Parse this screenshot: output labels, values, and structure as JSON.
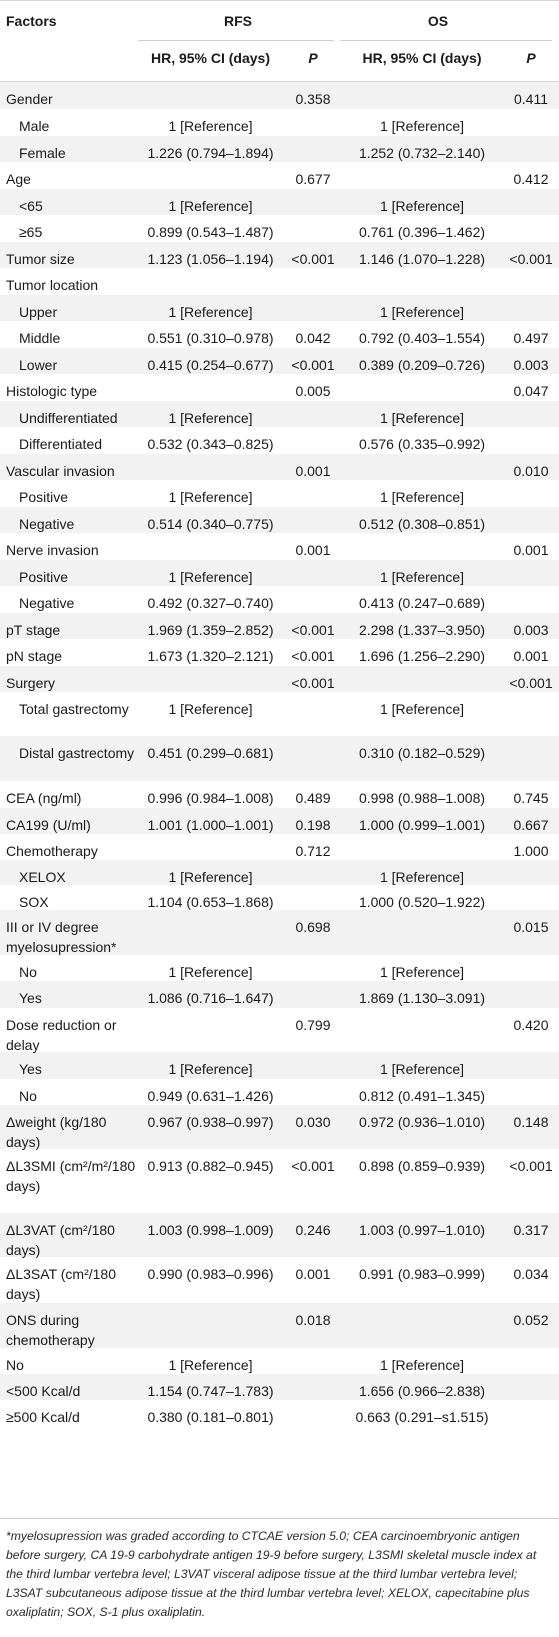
{
  "header": {
    "factors": "Factors",
    "rfs": "RFS",
    "os": "OS",
    "hr_ci": "HR, 95% CI (days)",
    "p": "P"
  },
  "rows": [
    {
      "label": "Gender",
      "indent": false,
      "rfs_hr": "",
      "rfs_p": "0.358",
      "os_hr": "",
      "os_p": "0.411",
      "h": 27
    },
    {
      "label": "Male",
      "indent": true,
      "rfs_hr": "1 [Reference]",
      "rfs_p": "",
      "os_hr": "1 [Reference]",
      "os_p": "",
      "h": 27
    },
    {
      "label": "Female",
      "indent": true,
      "rfs_hr": "1.226 (0.794–1.894)",
      "rfs_p": "",
      "os_hr": "1.252 (0.732–2.140)",
      "os_p": "",
      "h": 26
    },
    {
      "label": "Age",
      "indent": false,
      "rfs_hr": "",
      "rfs_p": "0.677",
      "os_hr": "",
      "os_p": "0.412",
      "h": 27
    },
    {
      "label": "<65",
      "indent": true,
      "rfs_hr": "1 [Reference]",
      "rfs_p": "",
      "os_hr": "1 [Reference]",
      "os_p": "",
      "h": 26
    },
    {
      "label": "≥65",
      "indent": true,
      "rfs_hr": "0.899 (0.543–1.487)",
      "rfs_p": "",
      "os_hr": "0.761 (0.396–1.462)",
      "os_p": "",
      "h": 27
    },
    {
      "label": "Tumor size",
      "indent": false,
      "rfs_hr": "1.123 (1.056–1.194)",
      "rfs_p": "<0.001",
      "os_hr": "1.146 (1.070–1.228)",
      "os_p": "<0.001",
      "h": 26
    },
    {
      "label": "Tumor location",
      "indent": false,
      "rfs_hr": "",
      "rfs_p": "",
      "os_hr": "",
      "os_p": "",
      "h": 27
    },
    {
      "label": "Upper",
      "indent": true,
      "rfs_hr": "1 [Reference]",
      "rfs_p": "",
      "os_hr": "1 [Reference]",
      "os_p": "",
      "h": 26
    },
    {
      "label": "Middle",
      "indent": true,
      "rfs_hr": "0.551 (0.310–0.978)",
      "rfs_p": "0.042",
      "os_hr": "0.792 (0.403–1.554)",
      "os_p": "0.497",
      "h": 27
    },
    {
      "label": "Lower",
      "indent": true,
      "rfs_hr": "0.415 (0.254–0.677)",
      "rfs_p": "<0.001",
      "os_hr": "0.389 (0.209–0.726)",
      "os_p": "0.003",
      "h": 26
    },
    {
      "label": "Histologic type",
      "indent": false,
      "rfs_hr": "",
      "rfs_p": "0.005",
      "os_hr": "",
      "os_p": "0.047",
      "h": 27
    },
    {
      "label": "Undifferentiated",
      "indent": true,
      "rfs_hr": "1 [Reference]",
      "rfs_p": "",
      "os_hr": "1 [Reference]",
      "os_p": "",
      "h": 26
    },
    {
      "label": "Differentiated",
      "indent": true,
      "rfs_hr": "0.532 (0.343–0.825)",
      "rfs_p": "",
      "os_hr": "0.576 (0.335–0.992)",
      "os_p": "",
      "h": 27
    },
    {
      "label": "Vascular invasion",
      "indent": false,
      "rfs_hr": "",
      "rfs_p": "0.001",
      "os_hr": "",
      "os_p": "0.010",
      "h": 26
    },
    {
      "label": "Positive",
      "indent": true,
      "rfs_hr": "1 [Reference]",
      "rfs_p": "",
      "os_hr": "1 [Reference]",
      "os_p": "",
      "h": 27
    },
    {
      "label": "Negative",
      "indent": true,
      "rfs_hr": "0.514 (0.340–0.775)",
      "rfs_p": "",
      "os_hr": "0.512 (0.308–0.851)",
      "os_p": "",
      "h": 26
    },
    {
      "label": "Nerve invasion",
      "indent": false,
      "rfs_hr": "",
      "rfs_p": "0.001",
      "os_hr": "",
      "os_p": "0.001",
      "h": 27
    },
    {
      "label": "Positive",
      "indent": true,
      "rfs_hr": "1 [Reference]",
      "rfs_p": "",
      "os_hr": "1 [Reference]",
      "os_p": "",
      "h": 26
    },
    {
      "label": "Negative",
      "indent": true,
      "rfs_hr": "0.492 (0.327–0.740)",
      "rfs_p": "",
      "os_hr": "0.413 (0.247–0.689)",
      "os_p": "",
      "h": 27
    },
    {
      "label": "pT stage",
      "indent": false,
      "rfs_hr": "1.969 (1.359–2.852)",
      "rfs_p": "<0.001",
      "os_hr": "2.298 (1.337–3.950)",
      "os_p": "0.003",
      "h": 26
    },
    {
      "label": "pN stage",
      "indent": false,
      "rfs_hr": "1.673 (1.320–2.121)",
      "rfs_p": "<0.001",
      "os_hr": "1.696 (1.256–2.290)",
      "os_p": "0.001",
      "h": 27
    },
    {
      "label": "Surgery",
      "indent": false,
      "rfs_hr": "",
      "rfs_p": "<0.001",
      "os_hr": "",
      "os_p": "<0.001",
      "h": 26
    },
    {
      "label": "Total gastrectomy",
      "indent": true,
      "rfs_hr": "1 [Reference]",
      "rfs_p": "",
      "os_hr": "1 [Reference]",
      "os_p": "",
      "h": 44
    },
    {
      "label": "Distal gastrectomy",
      "indent": true,
      "rfs_hr": "0.451 (0.299–0.681)",
      "rfs_p": "",
      "os_hr": "0.310 (0.182–0.529)",
      "os_p": "",
      "h": 45
    },
    {
      "label": "CEA (ng/ml)",
      "indent": false,
      "rfs_hr": "0.996 (0.984–1.008)",
      "rfs_p": "0.489",
      "os_hr": "0.998 (0.988–1.008)",
      "os_p": "0.745",
      "h": 27
    },
    {
      "label": "CA199 (U/ml)",
      "indent": false,
      "rfs_hr": "1.001 (1.000–1.001)",
      "rfs_p": "0.198",
      "os_hr": "1.000 (0.999–1.001)",
      "os_p": "0.667",
      "h": 26
    },
    {
      "label": "Chemotherapy",
      "indent": false,
      "rfs_hr": "",
      "rfs_p": "0.712",
      "os_hr": "",
      "os_p": "1.000",
      "h": 26
    },
    {
      "label": "XELOX",
      "indent": true,
      "rfs_hr": "1 [Reference]",
      "rfs_p": "",
      "os_hr": "1 [Reference]",
      "os_p": "",
      "h": 25
    },
    {
      "label": "SOX",
      "indent": true,
      "rfs_hr": "1.104 (0.653–1.868)",
      "rfs_p": "",
      "os_hr": "1.000 (0.520–1.922)",
      "os_p": "",
      "h": 25
    },
    {
      "label": "III or IV degree myelosupression*",
      "indent": false,
      "rfs_hr": "",
      "rfs_p": "0.698",
      "os_hr": "",
      "os_p": "0.015",
      "h": 45
    },
    {
      "label": "No",
      "indent": true,
      "rfs_hr": "1 [Reference]",
      "rfs_p": "",
      "os_hr": "1 [Reference]",
      "os_p": "",
      "h": 26
    },
    {
      "label": "Yes",
      "indent": true,
      "rfs_hr": "1.086 (0.716–1.647)",
      "rfs_p": "",
      "os_hr": "1.869 (1.130–3.091)",
      "os_p": "",
      "h": 27
    },
    {
      "label": "Dose reduction or delay",
      "indent": false,
      "rfs_hr": "",
      "rfs_p": "0.799",
      "os_hr": "",
      "os_p": "0.420",
      "h": 44
    },
    {
      "label": "Yes",
      "indent": true,
      "rfs_hr": "1 [Reference]",
      "rfs_p": "",
      "os_hr": "1 [Reference]",
      "os_p": "",
      "h": 27
    },
    {
      "label": "No",
      "indent": true,
      "rfs_hr": "0.949 (0.631–1.426)",
      "rfs_p": "",
      "os_hr": "0.812 (0.491–1.345)",
      "os_p": "",
      "h": 26
    },
    {
      "label": "Δweight (kg/180 days)",
      "indent": false,
      "rfs_hr": "0.967 (0.938–0.997)",
      "rfs_p": "0.030",
      "os_hr": "0.972 (0.936–1.010)",
      "os_p": "0.148",
      "h": 44
    },
    {
      "label": "ΔL3SMI (cm²/m²/180 days)",
      "indent": false,
      "rfs_hr": "0.913 (0.882–0.945)",
      "rfs_p": "<0.001",
      "os_hr": "0.898 (0.859–0.939)",
      "os_p": "<0.001",
      "h": 64
    },
    {
      "label": "ΔL3VAT (cm²/180 days)",
      "indent": false,
      "rfs_hr": "1.003 (0.998–1.009)",
      "rfs_p": "0.246",
      "os_hr": "1.003 (0.997–1.010)",
      "os_p": "0.317",
      "h": 44
    },
    {
      "label": "ΔL3SAT (cm²/180 days)",
      "indent": false,
      "rfs_hr": "0.990 (0.983–0.996)",
      "rfs_p": "0.001",
      "os_hr": "0.991 (0.983–0.999)",
      "os_p": "0.034",
      "h": 46
    },
    {
      "label": "ONS during chemotherapy",
      "indent": false,
      "rfs_hr": "",
      "rfs_p": "0.018",
      "os_hr": "",
      "os_p": "0.052",
      "h": 45
    },
    {
      "label": "No",
      "indent": false,
      "rfs_hr": "1 [Reference]",
      "rfs_p": "",
      "os_hr": "1 [Reference]",
      "os_p": "",
      "h": 26
    },
    {
      "label": "<500 Kcal/d",
      "indent": false,
      "rfs_hr": "1.154 (0.747–1.783)",
      "rfs_p": "",
      "os_hr": "1.656 (0.966–2.838)",
      "os_p": "",
      "h": 26
    },
    {
      "label": "≥500 Kcal/d",
      "indent": false,
      "rfs_hr": "0.380 (0.181–0.801)",
      "rfs_p": "",
      "os_hr": "0.663 (0.291–s1.515)",
      "os_p": "",
      "h": 48
    }
  ],
  "footnote": "*myelosupression was graded according to CTCAE version 5.0; CEA carcinoembryonic antigen before surgery, CA 19-9 carbohydrate antigen 19-9 before surgery, L3SMI skeletal muscle index at the third lumbar vertebra level; L3VAT visceral adipose tissue at the third lumbar vertebra level; L3SAT subcutaneous adipose tissue at the third lumbar vertebra level; XELOX, capecitabine plus oxaliplatin; SOX, S-1 plus oxaliplatin."
}
